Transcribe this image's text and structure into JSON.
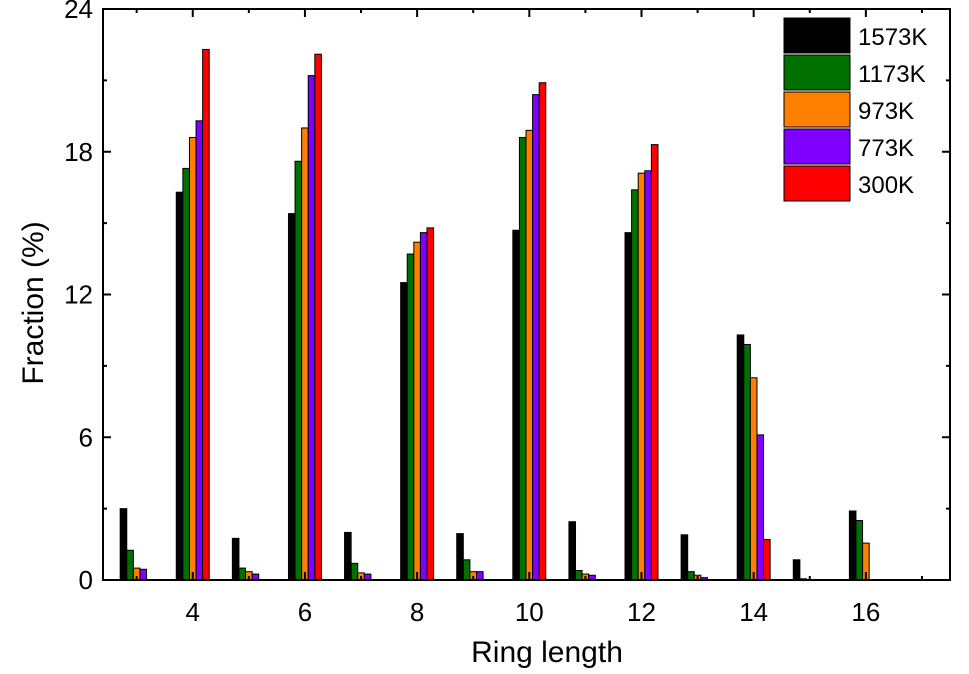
{
  "chart_data": {
    "type": "bar",
    "xlabel": "Ring length",
    "ylabel": "Fraction (%)",
    "ylim": [
      0,
      24
    ],
    "yticks": [
      "0",
      "6",
      "12",
      "18",
      "24"
    ],
    "xlim": [
      2.4,
      17.5
    ],
    "xtick_labels": [
      "4",
      "6",
      "8",
      "10",
      "12",
      "14",
      "16"
    ],
    "xtick_values": [
      4,
      6,
      8,
      10,
      12,
      14,
      16
    ],
    "categories": [
      3,
      4,
      5,
      6,
      7,
      8,
      9,
      10,
      11,
      12,
      13,
      14,
      15,
      16
    ],
    "legend_position": "top-right",
    "grid": false,
    "series": [
      {
        "name": "1573K",
        "color": "#000000",
        "values": [
          3.0,
          16.3,
          1.75,
          15.4,
          2.0,
          12.5,
          1.95,
          14.7,
          2.45,
          14.6,
          1.9,
          10.3,
          0.85,
          2.9
        ]
      },
      {
        "name": "1173K",
        "color": "#007000",
        "values": [
          1.25,
          17.3,
          0.5,
          17.6,
          0.7,
          13.7,
          0.85,
          18.6,
          0.4,
          16.4,
          0.35,
          9.9,
          0.05,
          2.5
        ]
      },
      {
        "name": "973K",
        "color": "#ff8000",
        "values": [
          0.5,
          18.6,
          0.35,
          19.0,
          0.3,
          14.2,
          0.35,
          18.9,
          0.25,
          17.1,
          0.2,
          8.5,
          0,
          1.55
        ]
      },
      {
        "name": "773K",
        "color": "#8000ff",
        "values": [
          0.45,
          19.3,
          0.25,
          21.2,
          0.25,
          14.6,
          0.35,
          20.4,
          0.2,
          17.2,
          0.1,
          6.1,
          0,
          0
        ]
      },
      {
        "name": "300K",
        "color": "#ff0000",
        "values": [
          0,
          22.3,
          0,
          22.1,
          0,
          14.8,
          0,
          20.9,
          0,
          18.3,
          0,
          1.7,
          0,
          0
        ]
      }
    ]
  }
}
